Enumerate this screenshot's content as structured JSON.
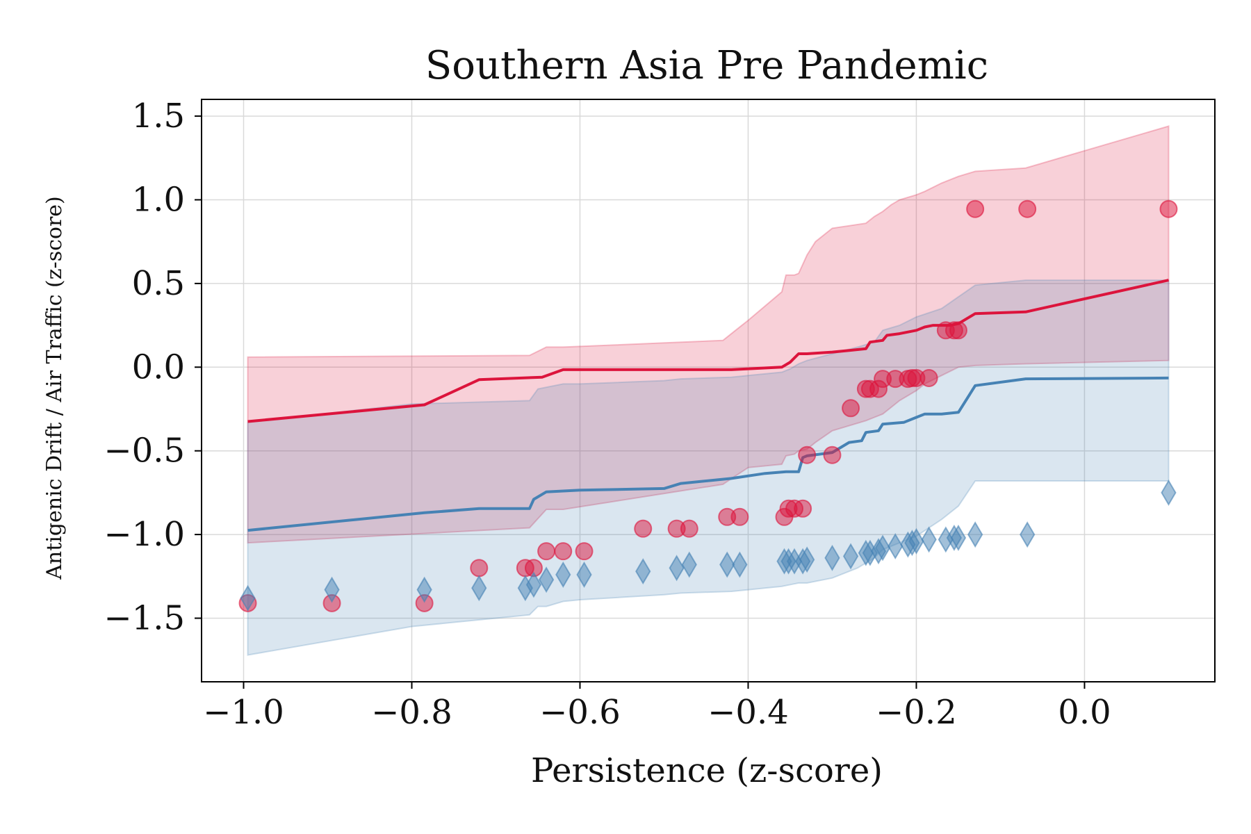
{
  "chart_data": {
    "type": "scatter",
    "title": "Southern Asia Pre Pandemic",
    "xlabel": "Persistence (z-score)",
    "ylabel": "Antigenic Drift / Air Traffic (z-score)",
    "xlim": [
      -1.05,
      0.155
    ],
    "ylim": [
      -1.88,
      1.6
    ],
    "xticks": [
      -1.0,
      -0.8,
      -0.6,
      -0.4,
      -0.2,
      0.0
    ],
    "xtick_labels": [
      "−1.0",
      "−0.8",
      "−0.6",
      "−0.4",
      "−0.2",
      "0.0"
    ],
    "yticks": [
      1.5,
      1.0,
      0.5,
      0.0,
      -0.5,
      -1.0,
      -1.5
    ],
    "ytick_labels": [
      "1.5",
      "1.0",
      "0.5",
      "0.0",
      "−0.5",
      "−1.0",
      "−1.5"
    ],
    "grid": true,
    "colors": {
      "red": "#dc143c",
      "blue": "#4682b4"
    },
    "series": [
      {
        "kind": "band",
        "color": "#dc143c",
        "x": [
          -0.995,
          -0.66,
          -0.64,
          -0.62,
          -0.43,
          -0.415,
          -0.4,
          -0.36,
          -0.355,
          -0.345,
          -0.34,
          -0.33,
          -0.32,
          -0.3,
          -0.26,
          -0.25,
          -0.24,
          -0.23,
          -0.22,
          -0.2,
          -0.19,
          -0.17,
          -0.15,
          -0.13,
          -0.07,
          0.1
        ],
        "upper": [
          0.06,
          0.07,
          0.12,
          0.12,
          0.16,
          0.22,
          0.28,
          0.45,
          0.55,
          0.55,
          0.56,
          0.67,
          0.75,
          0.83,
          0.86,
          0.9,
          0.93,
          0.97,
          1.0,
          1.03,
          1.05,
          1.1,
          1.14,
          1.17,
          1.19,
          1.44
        ],
        "lower": [
          -1.05,
          -0.96,
          -0.85,
          -0.85,
          -0.7,
          -0.65,
          -0.6,
          -0.58,
          -0.53,
          -0.52,
          -0.5,
          -0.49,
          -0.45,
          -0.38,
          -0.32,
          -0.3,
          -0.28,
          -0.24,
          -0.2,
          -0.14,
          -0.1,
          -0.05,
          0.0,
          0.01,
          0.02,
          0.04
        ]
      },
      {
        "kind": "band",
        "color": "#4682b4",
        "x": [
          -0.995,
          -0.8,
          -0.66,
          -0.65,
          -0.64,
          -0.62,
          -0.6,
          -0.5,
          -0.48,
          -0.42,
          -0.4,
          -0.36,
          -0.35,
          -0.34,
          -0.33,
          -0.3,
          -0.27,
          -0.25,
          -0.24,
          -0.22,
          -0.2,
          -0.17,
          -0.15,
          -0.13,
          -0.07,
          0.1
        ],
        "upper": [
          -0.33,
          -0.22,
          -0.2,
          -0.13,
          -0.12,
          -0.1,
          -0.1,
          -0.08,
          -0.07,
          -0.06,
          -0.05,
          -0.03,
          -0.01,
          0.02,
          0.04,
          0.08,
          0.12,
          0.15,
          0.22,
          0.25,
          0.3,
          0.35,
          0.42,
          0.49,
          0.52,
          0.52
        ],
        "lower": [
          -1.72,
          -1.55,
          -1.48,
          -1.43,
          -1.43,
          -1.4,
          -1.39,
          -1.36,
          -1.35,
          -1.34,
          -1.33,
          -1.31,
          -1.3,
          -1.29,
          -1.29,
          -1.26,
          -1.2,
          -1.14,
          -1.09,
          -1.05,
          -1.01,
          -0.91,
          -0.83,
          -0.68,
          -0.68,
          -0.68
        ]
      },
      {
        "kind": "line",
        "color": "#dc143c",
        "x": [
          -0.995,
          -0.785,
          -0.72,
          -0.645,
          -0.62,
          -0.42,
          -0.36,
          -0.35,
          -0.34,
          -0.33,
          -0.3,
          -0.28,
          -0.26,
          -0.255,
          -0.24,
          -0.235,
          -0.22,
          -0.2,
          -0.19,
          -0.18,
          -0.16,
          -0.15,
          -0.13,
          -0.07,
          0.1
        ],
        "y": [
          -0.325,
          -0.225,
          -0.075,
          -0.06,
          -0.015,
          -0.015,
          0.0,
          0.03,
          0.08,
          0.08,
          0.09,
          0.1,
          0.11,
          0.15,
          0.16,
          0.19,
          0.2,
          0.22,
          0.24,
          0.25,
          0.25,
          0.26,
          0.32,
          0.33,
          0.52
        ]
      },
      {
        "kind": "line",
        "color": "#4682b4",
        "x": [
          -0.995,
          -0.785,
          -0.72,
          -0.66,
          -0.655,
          -0.64,
          -0.6,
          -0.5,
          -0.48,
          -0.42,
          -0.38,
          -0.355,
          -0.34,
          -0.335,
          -0.33,
          -0.3,
          -0.28,
          -0.265,
          -0.26,
          -0.245,
          -0.24,
          -0.215,
          -0.2,
          -0.19,
          -0.17,
          -0.15,
          -0.13,
          -0.07,
          0.1
        ],
        "y": [
          -0.975,
          -0.87,
          -0.845,
          -0.845,
          -0.79,
          -0.745,
          -0.735,
          -0.725,
          -0.695,
          -0.665,
          -0.635,
          -0.625,
          -0.625,
          -0.54,
          -0.53,
          -0.51,
          -0.45,
          -0.44,
          -0.39,
          -0.38,
          -0.34,
          -0.33,
          -0.3,
          -0.28,
          -0.28,
          -0.27,
          -0.11,
          -0.07,
          -0.065
        ]
      },
      {
        "kind": "scatter",
        "marker": "circle",
        "color": "#dc143c",
        "x": [
          -0.995,
          -0.895,
          -0.785,
          -0.72,
          -0.665,
          -0.655,
          -0.64,
          -0.62,
          -0.595,
          -0.525,
          -0.485,
          -0.47,
          -0.425,
          -0.41,
          -0.357,
          -0.352,
          -0.345,
          -0.335,
          -0.33,
          -0.3,
          -0.278,
          -0.26,
          -0.255,
          -0.245,
          -0.24,
          -0.225,
          -0.21,
          -0.205,
          -0.2,
          -0.185,
          -0.165,
          -0.155,
          -0.15,
          -0.13,
          -0.068,
          0.1
        ],
        "y": [
          -1.41,
          -1.41,
          -1.41,
          -1.2,
          -1.2,
          -1.2,
          -1.1,
          -1.1,
          -1.1,
          -0.965,
          -0.965,
          -0.965,
          -0.895,
          -0.895,
          -0.895,
          -0.845,
          -0.845,
          -0.845,
          -0.525,
          -0.525,
          -0.245,
          -0.13,
          -0.13,
          -0.13,
          -0.07,
          -0.07,
          -0.07,
          -0.065,
          -0.065,
          -0.065,
          0.22,
          0.22,
          0.22,
          0.945,
          0.945,
          0.945
        ]
      },
      {
        "kind": "scatter",
        "marker": "diamond",
        "color": "#4682b4",
        "x": [
          -0.995,
          -0.895,
          -0.785,
          -0.72,
          -0.665,
          -0.655,
          -0.64,
          -0.62,
          -0.595,
          -0.525,
          -0.485,
          -0.47,
          -0.425,
          -0.41,
          -0.357,
          -0.352,
          -0.345,
          -0.335,
          -0.33,
          -0.3,
          -0.278,
          -0.26,
          -0.255,
          -0.245,
          -0.24,
          -0.225,
          -0.21,
          -0.205,
          -0.2,
          -0.185,
          -0.165,
          -0.155,
          -0.15,
          -0.13,
          -0.068,
          0.1
        ],
        "y": [
          -1.38,
          -1.33,
          -1.33,
          -1.32,
          -1.32,
          -1.3,
          -1.27,
          -1.24,
          -1.24,
          -1.22,
          -1.2,
          -1.18,
          -1.18,
          -1.18,
          -1.16,
          -1.16,
          -1.16,
          -1.16,
          -1.15,
          -1.14,
          -1.13,
          -1.11,
          -1.11,
          -1.1,
          -1.08,
          -1.07,
          -1.06,
          -1.05,
          -1.04,
          -1.03,
          -1.03,
          -1.02,
          -1.02,
          -1.0,
          -1.0,
          -0.75
        ]
      }
    ]
  }
}
